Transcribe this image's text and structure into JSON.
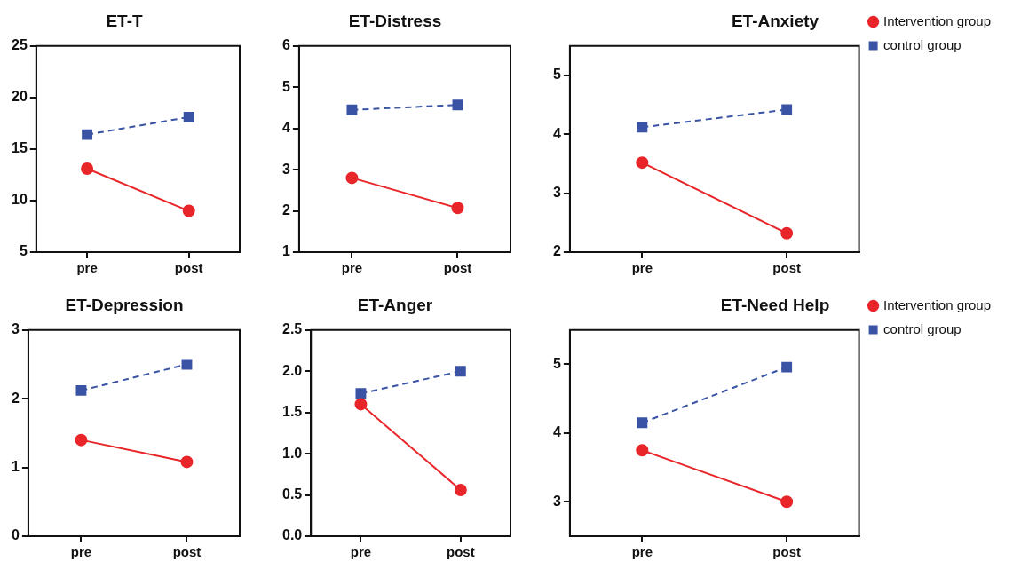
{
  "chart_data": [
    {
      "type": "line",
      "title": "ET-T",
      "categories": [
        "pre",
        "post"
      ],
      "ylim": [
        5,
        25
      ],
      "yticks": [
        5,
        10,
        15,
        20,
        25
      ],
      "grid": false,
      "legend": false,
      "series": [
        {
          "color": "#e8262a",
          "marker": "circle",
          "line_style": "solid",
          "values": [
            13.1,
            9.0
          ]
        },
        {
          "color": "#3a53a4",
          "marker": "square",
          "line_style": "dashed",
          "values": [
            16.4,
            18.1
          ]
        }
      ]
    },
    {
      "type": "line",
      "title": "ET-Distress",
      "categories": [
        "pre",
        "post"
      ],
      "ylim": [
        1,
        6
      ],
      "yticks": [
        1,
        2,
        3,
        4,
        5,
        6
      ],
      "grid": false,
      "legend": false,
      "series": [
        {
          "color": "#e8262a",
          "marker": "circle",
          "line_style": "solid",
          "values": [
            2.8,
            2.07
          ]
        },
        {
          "color": "#3a53a4",
          "marker": "square",
          "line_style": "dashed",
          "values": [
            4.45,
            4.57
          ]
        }
      ]
    },
    {
      "type": "line",
      "title": "ET-Anxiety",
      "categories": [
        "pre",
        "post"
      ],
      "ylim": [
        2,
        5.5
      ],
      "yticks": [
        2,
        3,
        4,
        5
      ],
      "grid": false,
      "legend": "right",
      "series": [
        {
          "name": "Intervention group",
          "color": "#e8262a",
          "marker": "circle",
          "line_style": "solid",
          "values": [
            3.52,
            2.32
          ]
        },
        {
          "name": "control group",
          "color": "#3a53a4",
          "marker": "square",
          "line_style": "dashed",
          "values": [
            4.12,
            4.42
          ]
        }
      ]
    },
    {
      "type": "line",
      "title": "ET-Depression",
      "categories": [
        "pre",
        "post"
      ],
      "ylim": [
        0,
        3
      ],
      "yticks": [
        0,
        1,
        2,
        3
      ],
      "grid": false,
      "legend": false,
      "series": [
        {
          "color": "#e8262a",
          "marker": "circle",
          "line_style": "solid",
          "values": [
            1.4,
            1.08
          ]
        },
        {
          "color": "#3a53a4",
          "marker": "square",
          "line_style": "dashed",
          "values": [
            2.12,
            2.5
          ]
        }
      ]
    },
    {
      "type": "line",
      "title": "ET-Anger",
      "categories": [
        "pre",
        "post"
      ],
      "ylim": [
        0,
        2.5
      ],
      "yticks": [
        {
          "value": 0,
          "label": "0.0"
        },
        {
          "value": 0.5,
          "label": "0.5"
        },
        {
          "value": 1,
          "label": "1.0"
        },
        {
          "value": 1.5,
          "label": "1.5"
        },
        {
          "value": 2,
          "label": "2.0"
        },
        {
          "value": 2.5,
          "label": "2.5"
        }
      ],
      "grid": false,
      "legend": false,
      "series": [
        {
          "color": "#e8262a",
          "marker": "circle",
          "line_style": "solid",
          "values": [
            1.6,
            0.56
          ]
        },
        {
          "color": "#3a53a4",
          "marker": "square",
          "line_style": "dashed",
          "values": [
            1.73,
            2.0
          ]
        }
      ]
    },
    {
      "type": "line",
      "title": "ET-Need Help",
      "categories": [
        "pre",
        "post"
      ],
      "ylim": [
        2.5,
        5.5
      ],
      "yticks": [
        3,
        4,
        5
      ],
      "grid": false,
      "legend": "right",
      "series": [
        {
          "name": "Intervention group",
          "color": "#e8262a",
          "marker": "circle",
          "line_style": "solid",
          "values": [
            3.75,
            3.0
          ]
        },
        {
          "name": "control group",
          "color": "#3a53a4",
          "marker": "square",
          "line_style": "dashed",
          "values": [
            4.15,
            4.96
          ]
        }
      ]
    }
  ]
}
